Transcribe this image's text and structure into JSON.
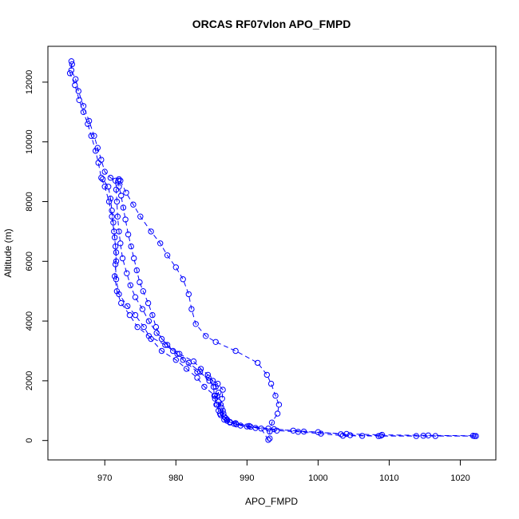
{
  "chart_data": {
    "type": "scatter",
    "title": "ORCAS RF07vlon APO_FMPD",
    "xlabel": "APO_FMPD",
    "ylabel": "Altitude (m)",
    "xlim": [
      962,
      1025
    ],
    "ylim": [
      -650,
      13200
    ],
    "x_ticks": [
      970,
      980,
      990,
      1000,
      1010,
      1020
    ],
    "y_ticks": [
      0,
      2000,
      4000,
      6000,
      8000,
      10000,
      12000
    ],
    "series_color": "#0000ff",
    "marker": "open-circle",
    "line_style": "dashed",
    "series": [
      {
        "values": [
          [
            1022.2,
            150
          ],
          [
            1016.5,
            150
          ],
          [
            1013.8,
            150
          ],
          [
            1008.5,
            150
          ],
          [
            1006.2,
            155
          ],
          [
            1003.5,
            160
          ],
          [
            1000.4,
            230
          ],
          [
            997.2,
            290
          ],
          [
            994.2,
            330
          ],
          [
            991.2,
            420
          ],
          [
            989.1,
            500
          ],
          [
            987.6,
            600
          ],
          [
            986.8,
            700
          ],
          [
            986.3,
            850
          ],
          [
            986.0,
            1000
          ],
          [
            985.8,
            1200
          ],
          [
            985.5,
            1400
          ],
          [
            985.8,
            1500
          ],
          [
            986.0,
            1600
          ],
          [
            985.6,
            1800
          ],
          [
            985.2,
            2000
          ],
          [
            984.5,
            2200
          ],
          [
            983.5,
            2400
          ],
          [
            982.5,
            2650
          ],
          [
            980.5,
            2900
          ],
          [
            978.8,
            3200
          ],
          [
            977.3,
            3600
          ],
          [
            976.2,
            4000
          ],
          [
            975.3,
            4400
          ],
          [
            974.3,
            4800
          ],
          [
            973.6,
            5200
          ],
          [
            973.1,
            5600
          ],
          [
            972.5,
            6100
          ],
          [
            972.2,
            6600
          ],
          [
            972.0,
            7000
          ],
          [
            971.8,
            7500
          ],
          [
            971.7,
            8000
          ],
          [
            971.6,
            8400
          ],
          [
            971.5,
            8700
          ],
          [
            970.8,
            8800
          ],
          [
            970.0,
            9000
          ],
          [
            969.5,
            9400
          ],
          [
            969.0,
            9800
          ],
          [
            968.5,
            10200
          ],
          [
            967.8,
            10700
          ],
          [
            967.0,
            11200
          ],
          [
            966.3,
            11700
          ],
          [
            965.9,
            12100
          ],
          [
            965.3,
            12400
          ],
          [
            965.3,
            12700
          ]
        ]
      },
      {
        "values": [
          [
            965.4,
            12600
          ],
          [
            965.1,
            12300
          ],
          [
            965.8,
            11900
          ],
          [
            966.4,
            11400
          ],
          [
            967.0,
            11000
          ],
          [
            967.6,
            10600
          ],
          [
            968.1,
            10200
          ],
          [
            968.7,
            9700
          ],
          [
            969.1,
            9300
          ],
          [
            969.5,
            8800
          ],
          [
            970.0,
            8500
          ],
          [
            970.6,
            8000
          ],
          [
            971.0,
            7500
          ],
          [
            971.3,
            7000
          ],
          [
            971.5,
            6500
          ],
          [
            971.6,
            6000
          ],
          [
            971.4,
            5500
          ],
          [
            971.7,
            5000
          ],
          [
            972.3,
            4600
          ],
          [
            973.5,
            4200
          ],
          [
            974.6,
            3800
          ],
          [
            976.2,
            3500
          ],
          [
            978.5,
            3200
          ],
          [
            980.2,
            2900
          ],
          [
            981.8,
            2600
          ],
          [
            983.4,
            2300
          ],
          [
            984.7,
            2000
          ],
          [
            985.3,
            1800
          ],
          [
            985.4,
            1500
          ],
          [
            985.7,
            1200
          ],
          [
            986.2,
            900
          ],
          [
            987.2,
            700
          ],
          [
            988.4,
            580
          ],
          [
            990.3,
            490
          ],
          [
            993.0,
            400
          ],
          [
            996.5,
            330
          ],
          [
            1000.0,
            280
          ],
          [
            1003.2,
            210
          ],
          [
            1004.5,
            180
          ],
          [
            1008.8,
            160
          ],
          [
            1014.8,
            160
          ],
          [
            1022.0,
            150
          ]
        ]
      },
      {
        "values": [
          [
            1021.8,
            160
          ],
          [
            1015.5,
            170
          ],
          [
            1009.0,
            190
          ],
          [
            1004.0,
            220
          ],
          [
            998.0,
            300
          ],
          [
            993.8,
            380
          ],
          [
            990.5,
            460
          ],
          [
            988.2,
            560
          ],
          [
            987.2,
            660
          ],
          [
            986.8,
            800
          ],
          [
            986.6,
            1000
          ],
          [
            986.3,
            1200
          ],
          [
            986.5,
            1400
          ],
          [
            986.6,
            1700
          ],
          [
            985.9,
            1900
          ],
          [
            984.6,
            2100
          ],
          [
            983.0,
            2300
          ],
          [
            981.0,
            2700
          ],
          [
            979.6,
            3000
          ],
          [
            978.0,
            3400
          ],
          [
            977.2,
            3800
          ],
          [
            976.7,
            4200
          ],
          [
            976.1,
            4600
          ],
          [
            975.4,
            5000
          ],
          [
            974.9,
            5300
          ],
          [
            974.5,
            5700
          ],
          [
            974.1,
            6100
          ],
          [
            973.7,
            6500
          ],
          [
            973.3,
            6900
          ],
          [
            972.9,
            7400
          ],
          [
            972.6,
            7800
          ],
          [
            972.3,
            8200
          ],
          [
            972.0,
            8500
          ],
          [
            971.9,
            8700
          ],
          [
            972.0,
            8750
          ]
        ]
      },
      {
        "values": [
          [
            972.2,
            8700
          ],
          [
            973.0,
            8300
          ],
          [
            974.0,
            7900
          ],
          [
            975.0,
            7500
          ],
          [
            976.5,
            7000
          ],
          [
            977.8,
            6600
          ],
          [
            978.8,
            6200
          ],
          [
            980.0,
            5800
          ],
          [
            981.0,
            5400
          ],
          [
            981.8,
            4900
          ],
          [
            982.2,
            4400
          ],
          [
            982.8,
            3900
          ],
          [
            984.2,
            3500
          ],
          [
            985.6,
            3300
          ],
          [
            988.4,
            3000
          ],
          [
            991.5,
            2600
          ],
          [
            992.8,
            2200
          ],
          [
            993.4,
            1900
          ],
          [
            994.0,
            1500
          ],
          [
            994.5,
            1200
          ],
          [
            994.3,
            900
          ],
          [
            993.5,
            600
          ],
          [
            993.2,
            300
          ],
          [
            993.2,
            70
          ]
        ]
      },
      {
        "values": [
          [
            993.0,
            20
          ],
          [
            992.0,
            400
          ],
          [
            990.0,
            470
          ],
          [
            988.5,
            540
          ],
          [
            987.6,
            620
          ],
          [
            987.0,
            750
          ],
          [
            986.7,
            900
          ],
          [
            986.4,
            1100
          ],
          [
            986.0,
            1300
          ],
          [
            985.5,
            1500
          ],
          [
            984.0,
            1800
          ],
          [
            983.0,
            2100
          ],
          [
            981.5,
            2400
          ],
          [
            980.0,
            2700
          ],
          [
            978.0,
            3000
          ],
          [
            976.5,
            3400
          ],
          [
            975.5,
            3800
          ],
          [
            974.3,
            4200
          ],
          [
            973.2,
            4500
          ],
          [
            972.0,
            4900
          ],
          [
            971.6,
            5400
          ],
          [
            971.5,
            5900
          ],
          [
            971.6,
            6300
          ],
          [
            971.4,
            6800
          ],
          [
            971.2,
            7300
          ],
          [
            971.0,
            7700
          ],
          [
            970.8,
            8100
          ],
          [
            970.5,
            8500
          ],
          [
            969.7,
            8750
          ]
        ]
      }
    ]
  }
}
